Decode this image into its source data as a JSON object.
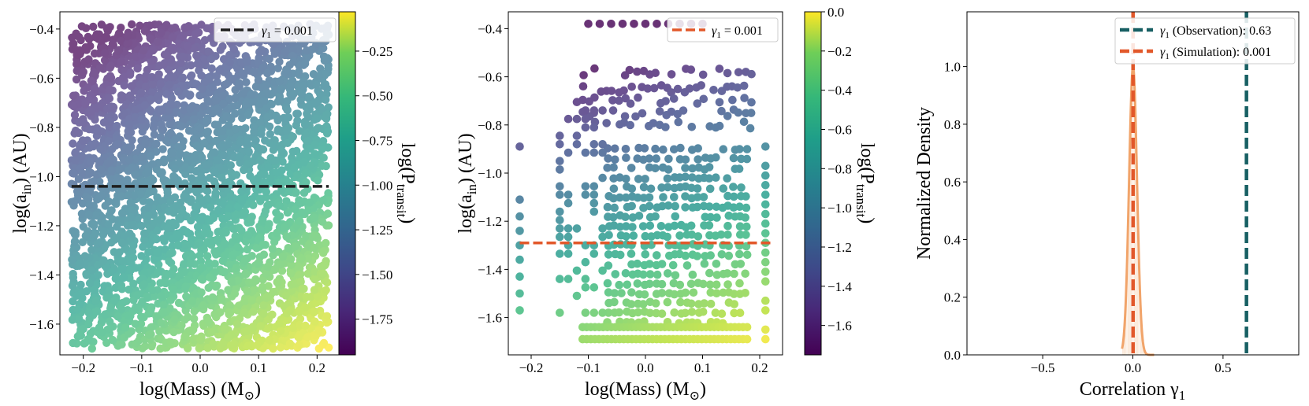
{
  "colors": {
    "black_dashed": "#1f1f1f",
    "orange_dashed": "#e2582a",
    "teal_dashed": "#175f63",
    "orange_hist": "#f1a46a"
  },
  "chart_data": [
    {
      "type": "scatter",
      "title": "",
      "xlabel": "log(Mass) (M",
      "xlabel_symbol": "⊙",
      "xlabel_close": ")",
      "ylabel": "log(a",
      "ylabel_sub": "in",
      "ylabel_close": ") (AU)",
      "xlim": [
        -0.24,
        0.24
      ],
      "ylim": [
        -1.725,
        -0.33
      ],
      "xticks": [
        "-0.2",
        "-0.1",
        "0.0",
        "0.1",
        "0.2"
      ],
      "xtick_values": [
        -0.2,
        -0.1,
        0.0,
        0.1,
        0.2
      ],
      "yticks": [
        "-1.6",
        "-1.4",
        "-1.2",
        "-1.0",
        "-0.8",
        "-0.6",
        "-0.4"
      ],
      "ytick_values": [
        -1.6,
        -1.4,
        -1.2,
        -1.0,
        -0.8,
        -0.6,
        -0.4
      ],
      "x_range": [
        -0.22,
        0.22
      ],
      "y_range": [
        -1.7,
        -0.38
      ],
      "n_points": 3200,
      "fit_line": {
        "y": -1.04,
        "x_from": -0.22,
        "x_to": 0.22
      },
      "legend": {
        "position": "top-right",
        "label": "γ",
        "label_sub": "1",
        "label_rest": " = 0.001"
      },
      "colorbar": {
        "label": "log(P",
        "label_sub": "transit",
        "label_close": ")",
        "range": [
          -1.95,
          -0.03
        ],
        "ticks": [
          "-0.25",
          "-0.50",
          "-0.75",
          "-1.00",
          "-1.25",
          "-1.50",
          "-1.75"
        ],
        "tick_values": [
          -0.25,
          -0.5,
          -0.75,
          -1.0,
          -1.25,
          -1.5,
          -1.75
        ]
      }
    },
    {
      "type": "scatter",
      "title": "",
      "xlabel": "log(Mass) (M",
      "xlabel_symbol": "⊙",
      "xlabel_close": ")",
      "ylabel": "log(a",
      "ylabel_sub": "in",
      "ylabel_close": ") (AU)",
      "xlim": [
        -0.24,
        0.24
      ],
      "ylim": [
        -1.755,
        -0.33
      ],
      "xticks": [
        "-0.2",
        "-0.1",
        "0.0",
        "0.1",
        "0.2"
      ],
      "xtick_values": [
        -0.2,
        -0.1,
        0.0,
        0.1,
        0.2
      ],
      "yticks": [
        "-1.6",
        "-1.4",
        "-1.2",
        "-1.0",
        "-0.8",
        "-0.6",
        "-0.4"
      ],
      "ytick_values": [
        -1.6,
        -1.4,
        -1.2,
        -1.0,
        -0.8,
        -0.6,
        -0.4
      ],
      "fit_line": {
        "y": -1.29,
        "x_from": -0.22,
        "x_to": 0.22
      },
      "legend": {
        "position": "top-right",
        "label": "γ",
        "label_sub": "1",
        "label_rest": " = 0.001"
      },
      "colorbar": {
        "label": "log(P",
        "label_sub": "transit",
        "label_close": ")",
        "range": [
          -1.75,
          0.0
        ],
        "ticks": [
          "0.0",
          "-0.2",
          "-0.4",
          "-0.6",
          "-0.8",
          "-1.0",
          "-1.2",
          "-1.4",
          "-1.6"
        ],
        "tick_values": [
          0.0,
          -0.2,
          -0.4,
          -0.6,
          -0.8,
          -1.0,
          -1.2,
          -1.4,
          -1.6
        ]
      }
    },
    {
      "type": "area",
      "title": "",
      "xlabel": "Correlation γ",
      "xlabel_sub": "1",
      "ylabel": "Normalized Density",
      "xlim": [
        -0.92,
        0.92
      ],
      "ylim": [
        0.0,
        1.19
      ],
      "xticks": [
        "-0.5",
        "0.0",
        "0.5"
      ],
      "xtick_values": [
        -0.5,
        0.0,
        0.5
      ],
      "yticks": [
        "0.0",
        "0.2",
        "0.4",
        "0.6",
        "0.8",
        "1.0"
      ],
      "ytick_values": [
        0.0,
        0.2,
        0.4,
        0.6,
        0.8,
        1.0
      ],
      "density": {
        "center": 0.001,
        "sigma": 0.022,
        "peak": 1.0,
        "x_from": -0.06,
        "x_to": 0.12
      },
      "vlines": [
        {
          "name": "observation",
          "x": 0.63
        },
        {
          "name": "simulation",
          "x": 0.001
        }
      ],
      "legend": {
        "position": "top-right",
        "items": [
          {
            "label": "γ",
            "label_sub": "1",
            "label_rest": " (Observation): 0.63"
          },
          {
            "label": "γ",
            "label_sub": "1",
            "label_rest": " (Simulation): 0.001"
          }
        ]
      }
    }
  ]
}
